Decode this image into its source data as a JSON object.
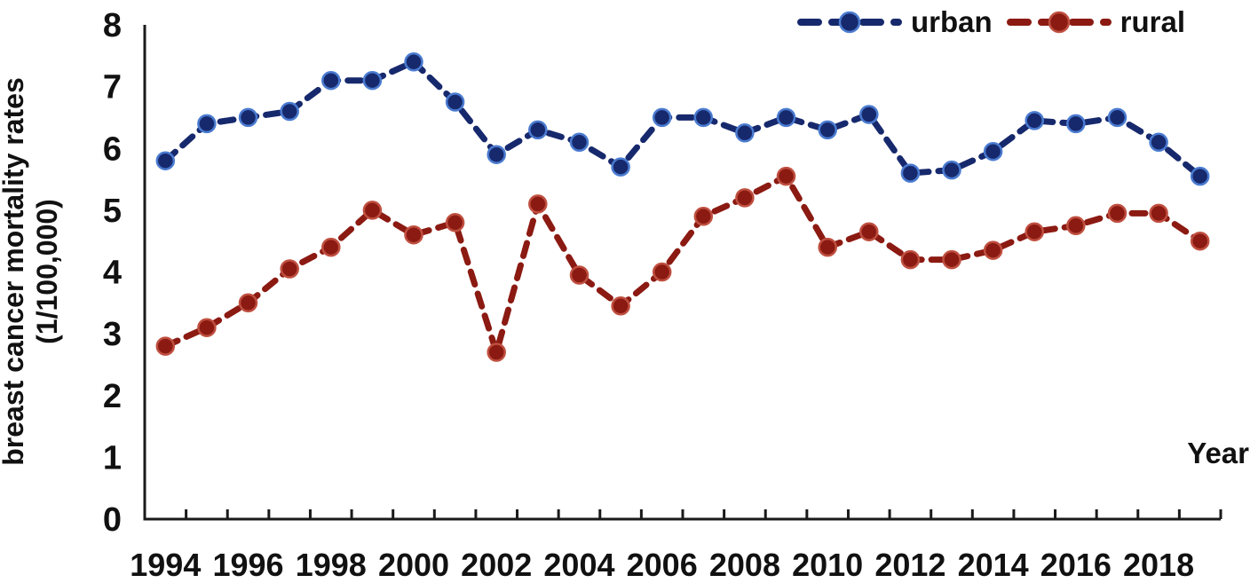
{
  "chart_data": {
    "type": "line",
    "title": "",
    "xlabel": "Year",
    "ylabel": "breast cancer mortality rates (1/100,000)",
    "ylabel_line1": "breast cancer mortality rates",
    "ylabel_line2": "(1/100,000)",
    "x": [
      1994,
      1995,
      1996,
      1997,
      1998,
      1999,
      2000,
      2001,
      2002,
      2003,
      2004,
      2005,
      2006,
      2007,
      2008,
      2009,
      2010,
      2011,
      2012,
      2013,
      2014,
      2015,
      2016,
      2017,
      2018,
      2019
    ],
    "series": [
      {
        "name": "urban",
        "color": "#17296d",
        "marker_edge": "#4a7bd0",
        "values": [
          5.8,
          6.4,
          6.5,
          6.6,
          7.1,
          7.1,
          7.4,
          6.75,
          5.9,
          6.3,
          6.1,
          5.7,
          6.5,
          6.5,
          6.25,
          6.5,
          6.3,
          6.55,
          5.6,
          5.65,
          5.95,
          6.45,
          6.4,
          6.5,
          6.1,
          5.55
        ]
      },
      {
        "name": "rural",
        "color": "#8b1a12",
        "marker_edge": "#bf4f40",
        "values": [
          2.8,
          3.1,
          3.5,
          4.05,
          4.4,
          5.0,
          4.6,
          4.8,
          2.7,
          5.1,
          3.95,
          3.45,
          4.0,
          4.9,
          5.2,
          5.55,
          4.4,
          4.65,
          4.2,
          4.2,
          4.35,
          4.65,
          4.75,
          4.95,
          4.95,
          4.5
        ]
      }
    ],
    "ylim": [
      0,
      8
    ],
    "yticks": [
      0,
      1,
      2,
      3,
      4,
      5,
      6,
      7,
      8
    ],
    "xtick_labels": [
      "1994",
      "1996",
      "1998",
      "2000",
      "2002",
      "2004",
      "2006",
      "2008",
      "2010",
      "2012",
      "2014",
      "2016",
      "2018"
    ],
    "xtick_every": 2,
    "grid": false,
    "legend_position": "top-right",
    "line_style": "dashed",
    "marker": "circle",
    "axis_color": "#1a1a1a"
  }
}
